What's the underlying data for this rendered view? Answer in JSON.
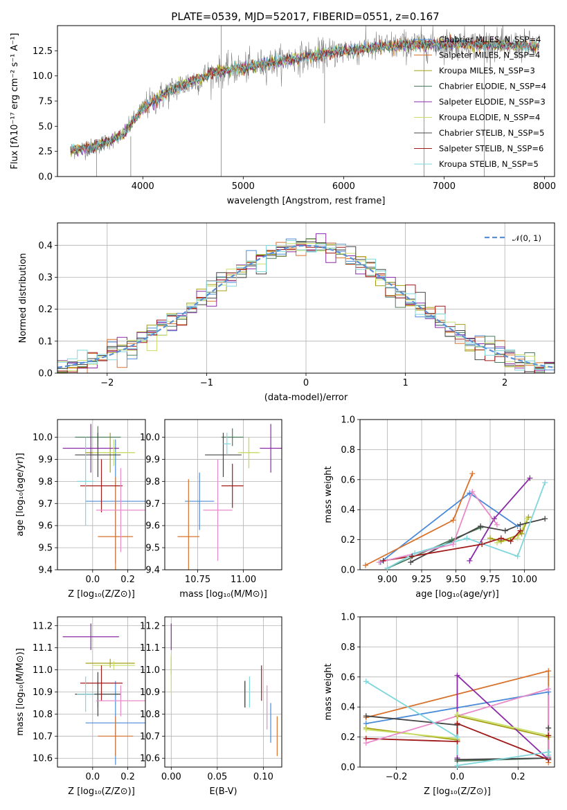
{
  "figure": {
    "title": "PLATE=0539, MJD=52017, FIBERID=0551, z=0.167"
  },
  "colors": {
    "chabrier_miles": "#4a8ad8",
    "salpeter_miles": "#d8722a",
    "kroupa_miles": "#a6a010",
    "chabrier_elodie": "#4a7a5a",
    "salpeter_elodie": "#8a2aa6",
    "kroupa_elodie": "#c8e06a",
    "chabrier_stelib": "#444444",
    "salpeter_stelib": "#a01818",
    "kroupa_stelib": "#7ed6dc",
    "data": "#808080",
    "gaussian": "#5b8fd6",
    "grid": "#b0b0b0"
  },
  "chart_data": [
    {
      "id": "spectrum",
      "type": "line",
      "title": "PLATE=0539, MJD=52017, FIBERID=0551, z=0.167",
      "xlabel": "wavelength [Angstrom, rest frame]",
      "ylabel": "Flux [fλ10⁻¹⁷ erg cm⁻² s⁻¹ A⁻¹]",
      "xlim": [
        3150,
        8100
      ],
      "ylim": [
        0,
        15
      ],
      "xticks": [
        4000,
        5000,
        6000,
        7000,
        8000
      ],
      "yticks": [
        0.0,
        2.5,
        5.0,
        7.5,
        10.0,
        12.5
      ],
      "grid": false,
      "legend_position": "right",
      "trend": {
        "x": [
          3280,
          3500,
          3800,
          4000,
          4300,
          4700,
          5000,
          5500,
          6000,
          6500,
          7000,
          7500,
          7950
        ],
        "y": [
          2.6,
          2.9,
          4.1,
          6.8,
          8.7,
          10.3,
          10.8,
          11.7,
          12.5,
          13.0,
          13.2,
          13.1,
          12.9
        ]
      },
      "legend": [
        "Chabrier MILES, N_SSP=4",
        "Salpeter MILES, N_SSP=4",
        "Kroupa MILES, N_SSP=3",
        "Chabrier ELODIE, N_SSP=4",
        "Salpeter ELODIE, N_SSP=3",
        "Kroupa ELODIE, N_SSP=4",
        "Chabrier STELIB, N_SSP=5",
        "Salpeter STELIB, N_SSP=6",
        "Kroupa STELIB, N_SSP=5"
      ]
    },
    {
      "id": "residuals",
      "type": "line",
      "xlabel": "(data-model)/error",
      "ylabel": "Normed distribution",
      "xlim": [
        -2.5,
        2.5
      ],
      "ylim": [
        0,
        0.47
      ],
      "xticks": [
        -2,
        -1,
        0,
        1,
        2
      ],
      "yticks": [
        0.0,
        0.1,
        0.2,
        0.3,
        0.4
      ],
      "grid": true,
      "legend_position": "top-right",
      "legend": [
        "𝒩(0, 1)"
      ],
      "bin_width": 0.1
    },
    {
      "id": "age_vs_Z",
      "type": "scatter",
      "xlabel": "Z [log₁₀(Z/Z⊙)]",
      "ylabel": "age  [log₁₀(age/yr)]",
      "xlim": [
        -0.2,
        0.3
      ],
      "ylim": [
        9.4,
        10.08
      ],
      "xticks": [
        0.0,
        0.2
      ],
      "yticks": [
        9.4,
        9.5,
        9.6,
        9.7,
        9.8,
        9.9,
        10.0
      ],
      "grid": true,
      "series": [
        {
          "color": "#4a8ad8",
          "x": 0.13,
          "y": 9.71,
          "xerr": 0.17,
          "yerr": 0.28
        },
        {
          "color": "#d8722a",
          "x": 0.13,
          "y": 9.55,
          "xerr": 0.1,
          "yerr": 0.27
        },
        {
          "color": "#a6a010",
          "x": 0.1,
          "y": 9.93,
          "xerr": 0.14,
          "yerr": 0.09
        },
        {
          "color": "#4a7a5a",
          "x": 0.03,
          "y": 10.0,
          "xerr": 0.13,
          "yerr": 0.05
        },
        {
          "color": "#8a2aa6",
          "x": -0.01,
          "y": 9.95,
          "xerr": 0.16,
          "yerr": 0.11
        },
        {
          "color": "#c8e06a",
          "x": 0.12,
          "y": 9.93,
          "xerr": 0.12,
          "yerr": 0.06
        },
        {
          "color": "#444444",
          "x": 0.03,
          "y": 9.92,
          "xerr": 0.13,
          "yerr": 0.1
        },
        {
          "color": "#a01818",
          "x": 0.05,
          "y": 9.78,
          "xerr": 0.12,
          "yerr": 0.12
        },
        {
          "color": "#e88ac8",
          "x": 0.16,
          "y": 9.67,
          "xerr": 0.14,
          "yerr": 0.19
        },
        {
          "color": "#7ed6dc",
          "x": -0.04,
          "y": 9.8,
          "xerr": 0.05,
          "yerr": 0.2
        }
      ]
    },
    {
      "id": "age_vs_mass",
      "type": "scatter",
      "xlabel": "mass [log₁₀(M/M⊙)]",
      "ylabel": "",
      "xlim": [
        10.57,
        11.21
      ],
      "ylim": [
        9.4,
        10.08
      ],
      "xticks": [
        10.75,
        11.0
      ],
      "yticks": [
        9.4,
        9.5,
        9.6,
        9.7,
        9.8,
        9.9,
        10.0
      ],
      "grid": true,
      "series": [
        {
          "color": "#4a8ad8",
          "x": 10.76,
          "y": 9.71,
          "xerr": 0.08,
          "yerr": 0.13
        },
        {
          "color": "#d8722a",
          "x": 10.7,
          "y": 9.55,
          "xerr": 0.06,
          "yerr": 0.26
        },
        {
          "color": "#a6a010",
          "x": 11.03,
          "y": 9.93,
          "xerr": 0.05,
          "yerr": 0.07
        },
        {
          "color": "#4a7a5a",
          "x": 10.94,
          "y": 10.0,
          "xerr": 0.06,
          "yerr": 0.04
        },
        {
          "color": "#8a2aa6",
          "x": 11.15,
          "y": 9.95,
          "xerr": 0.06,
          "yerr": 0.11
        },
        {
          "color": "#c8e06a",
          "x": 11.03,
          "y": 9.93,
          "xerr": 0.06,
          "yerr": 0.07
        },
        {
          "color": "#444444",
          "x": 10.89,
          "y": 9.92,
          "xerr": 0.1,
          "yerr": 0.1
        },
        {
          "color": "#a01818",
          "x": 10.94,
          "y": 9.78,
          "xerr": 0.06,
          "yerr": 0.1
        },
        {
          "color": "#e88ac8",
          "x": 10.86,
          "y": 9.67,
          "xerr": 0.08,
          "yerr": 0.23
        },
        {
          "color": "#7ed6dc",
          "x": 10.91,
          "y": 9.97,
          "xerr": 0.02,
          "yerr": 0.05
        }
      ]
    },
    {
      "id": "weight_vs_age",
      "type": "line",
      "xlabel": "age  [log₁₀(age/yr)]",
      "ylabel": "mass weight",
      "xlim": [
        8.8,
        10.22
      ],
      "ylim": [
        0,
        1.0
      ],
      "xticks": [
        9.0,
        9.25,
        9.5,
        9.75,
        10.0
      ],
      "yticks": [
        0.0,
        0.2,
        0.4,
        0.6,
        0.8,
        1.0
      ],
      "grid": true,
      "series": [
        {
          "color": "#4a8ad8",
          "x": [
            8.95,
            9.6,
            9.95
          ],
          "y": [
            0.05,
            0.51,
            0.29
          ]
        },
        {
          "color": "#d8722a",
          "x": [
            8.84,
            9.48,
            9.62
          ],
          "y": [
            0.03,
            0.33,
            0.64
          ]
        },
        {
          "color": "#a6a010",
          "x": [
            9.75,
            9.83,
            9.98,
            10.03
          ],
          "y": [
            0.21,
            0.19,
            0.24,
            0.35
          ]
        },
        {
          "color": "#4a7a5a",
          "x": [
            9.0,
            9.47,
            9.68
          ],
          "y": [
            0.01,
            0.2,
            0.28
          ]
        },
        {
          "color": "#8a2aa6",
          "x": [
            9.6,
            9.78,
            10.04
          ],
          "y": [
            0.06,
            0.34,
            0.61
          ]
        },
        {
          "color": "#c8e06a",
          "x": [
            9.8,
            9.95,
            10.02
          ],
          "y": [
            0.18,
            0.21,
            0.34
          ]
        },
        {
          "color": "#444444",
          "x": [
            9.17,
            9.68,
            9.86,
            9.97,
            10.15
          ],
          "y": [
            0.05,
            0.29,
            0.26,
            0.3,
            0.34
          ]
        },
        {
          "color": "#a01818",
          "x": [
            8.97,
            9.18,
            9.69,
            9.83,
            9.9,
            9.97
          ],
          "y": [
            0.06,
            0.09,
            0.17,
            0.21,
            0.19,
            0.26
          ]
        },
        {
          "color": "#e88ac8",
          "x": [
            8.94,
            9.48,
            9.62,
            9.8
          ],
          "y": [
            0.05,
            0.17,
            0.52,
            0.3
          ]
        },
        {
          "color": "#7ed6dc",
          "x": [
            9.0,
            9.2,
            9.58,
            9.95,
            10.15
          ],
          "y": [
            0.01,
            0.11,
            0.21,
            0.09,
            0.58
          ]
        }
      ]
    },
    {
      "id": "mass_vs_Z",
      "type": "scatter",
      "xlabel": "Z [log₁₀(Z/Z⊙)]",
      "ylabel": "mass [log₁₀(M/M⊙)]",
      "xlim": [
        -0.2,
        0.3
      ],
      "ylim": [
        10.56,
        11.24
      ],
      "xticks": [
        0.0,
        0.2
      ],
      "yticks": [
        10.6,
        10.7,
        10.8,
        10.9,
        11.0,
        11.1,
        11.2
      ],
      "grid": true,
      "series": [
        {
          "color": "#4a8ad8",
          "x": 0.13,
          "y": 10.76,
          "xerr": 0.17,
          "yerr": 0.19
        },
        {
          "color": "#d8722a",
          "x": 0.13,
          "y": 10.7,
          "xerr": 0.1,
          "yerr": 0.09
        },
        {
          "color": "#a6a010",
          "x": 0.1,
          "y": 11.03,
          "xerr": 0.14,
          "yerr": 0.02
        },
        {
          "color": "#4a7a5a",
          "x": 0.03,
          "y": 10.89,
          "xerr": 0.13,
          "yerr": 0.06
        },
        {
          "color": "#8a2aa6",
          "x": -0.01,
          "y": 11.15,
          "xerr": 0.16,
          "yerr": 0.06
        },
        {
          "color": "#c8e06a",
          "x": 0.12,
          "y": 11.02,
          "xerr": 0.12,
          "yerr": 0.02
        },
        {
          "color": "#444444",
          "x": 0.03,
          "y": 10.89,
          "xerr": 0.13,
          "yerr": 0.1
        },
        {
          "color": "#a01818",
          "x": 0.05,
          "y": 10.94,
          "xerr": 0.12,
          "yerr": 0.08
        },
        {
          "color": "#e88ac8",
          "x": 0.16,
          "y": 10.86,
          "xerr": 0.14,
          "yerr": 0.07
        },
        {
          "color": "#7ed6dc",
          "x": -0.04,
          "y": 10.89,
          "xerr": 0.05,
          "yerr": 0.08
        }
      ]
    },
    {
      "id": "mass_vs_ebv",
      "type": "scatter",
      "xlabel": "E(B-V)",
      "ylabel": "",
      "xlim": [
        -0.007,
        0.12
      ],
      "ylim": [
        10.56,
        11.24
      ],
      "xticks": [
        0.0,
        0.05,
        0.1
      ],
      "yticks": [
        10.6,
        10.7,
        10.8,
        10.9,
        11.0,
        11.1,
        11.2
      ],
      "grid": true,
      "series": [
        {
          "color": "#4a8ad8",
          "x": 0.108,
          "y": 10.76,
          "yerr": 0.09
        },
        {
          "color": "#d8722a",
          "x": 0.115,
          "y": 10.7,
          "yerr": 0.09
        },
        {
          "color": "#a6a010",
          "x": 0.0,
          "y": 11.02,
          "yerr": 0.04
        },
        {
          "color": "#4a7a5a",
          "x": 0.08,
          "y": 10.89,
          "yerr": 0.06
        },
        {
          "color": "#8a2aa6",
          "x": 0.0,
          "y": 11.15,
          "yerr": 0.06
        },
        {
          "color": "#c8e06a",
          "x": 0.0,
          "y": 10.98,
          "yerr": 0.09
        },
        {
          "color": "#444444",
          "x": 0.08,
          "y": 10.89,
          "yerr": 0.06
        },
        {
          "color": "#a01818",
          "x": 0.098,
          "y": 10.94,
          "yerr": 0.08
        },
        {
          "color": "#e88ac8",
          "x": 0.104,
          "y": 10.83,
          "yerr": 0.1
        },
        {
          "color": "#7ed6dc",
          "x": 0.085,
          "y": 10.9,
          "yerr": 0.07
        }
      ]
    },
    {
      "id": "weight_vs_Z",
      "type": "line",
      "xlabel": "Z [log₁₀(Z/Z⊙)]",
      "ylabel": "mass weight",
      "xlim": [
        -0.32,
        0.32
      ],
      "ylim": [
        0,
        1.0
      ],
      "xticks": [
        -0.2,
        0.0,
        0.2
      ],
      "yticks": [
        0.0,
        0.2,
        0.4,
        0.6,
        0.8,
        1.0
      ],
      "grid": true,
      "series": [
        {
          "color": "#4a8ad8",
          "x": [
            -0.3,
            0.3,
            0.3
          ],
          "y": [
            0.29,
            0.5,
            0.05
          ]
        },
        {
          "color": "#d8722a",
          "x": [
            -0.3,
            0.3,
            0.3
          ],
          "y": [
            0.33,
            0.64,
            0.03
          ]
        },
        {
          "color": "#a6a010",
          "x": [
            -0.3,
            0.0,
            0.0,
            0.3
          ],
          "y": [
            0.26,
            0.18,
            0.34,
            0.2
          ]
        },
        {
          "color": "#4a7a5a",
          "x": [
            0.0,
            0.3
          ],
          "y": [
            0.04,
            0.06
          ]
        },
        {
          "color": "#8a2aa6",
          "x": [
            0.0,
            0.0,
            0.3
          ],
          "y": [
            0.06,
            0.61,
            0.05
          ]
        },
        {
          "color": "#c8e06a",
          "x": [
            -0.3,
            0.0,
            0.0,
            0.3
          ],
          "y": [
            0.25,
            0.19,
            0.35,
            0.21
          ]
        },
        {
          "color": "#444444",
          "x": [
            -0.3,
            0.0,
            0.0,
            0.3,
            0.3
          ],
          "y": [
            0.34,
            0.28,
            0.05,
            0.06,
            0.26
          ]
        },
        {
          "color": "#a01818",
          "x": [
            -0.3,
            0.0,
            0.0,
            0.3,
            0.3
          ],
          "y": [
            0.19,
            0.17,
            0.29,
            0.05,
            0.21
          ]
        },
        {
          "color": "#e88ac8",
          "x": [
            -0.3,
            0.3,
            0.3
          ],
          "y": [
            0.16,
            0.52,
            0.07
          ]
        },
        {
          "color": "#7ed6dc",
          "x": [
            -0.3,
            0.0,
            0.0,
            0.3,
            0.3
          ],
          "y": [
            0.57,
            0.2,
            0.01,
            0.1,
            0.08
          ]
        }
      ]
    }
  ]
}
